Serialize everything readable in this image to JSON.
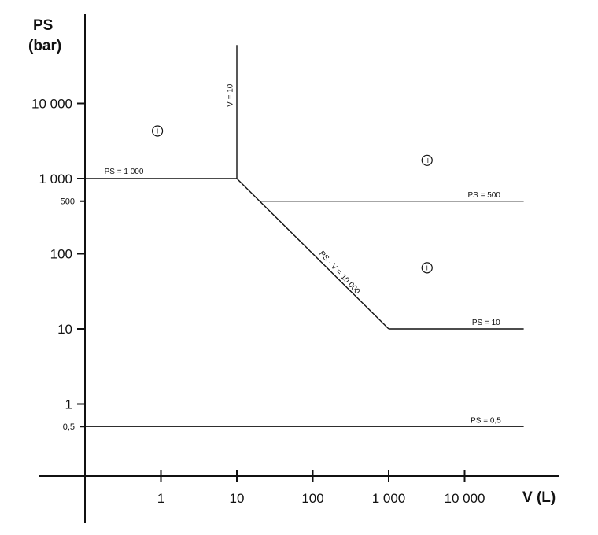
{
  "chart_data": {
    "type": "line",
    "title": "",
    "y_axis": {
      "label_line1": "PS",
      "label_line2": "(bar)",
      "scale": "log",
      "range": [
        0.05,
        60000
      ],
      "ticks": [
        {
          "value": 10000,
          "label": "10 000",
          "minor": false
        },
        {
          "value": 1000,
          "label": "1 000",
          "minor": false
        },
        {
          "value": 500,
          "label": "500",
          "minor": true
        },
        {
          "value": 100,
          "label": "100",
          "minor": false
        },
        {
          "value": 10,
          "label": "10",
          "minor": false
        },
        {
          "value": 1,
          "label": "1",
          "minor": false
        },
        {
          "value": 0.5,
          "label": "0,5",
          "minor": true
        }
      ]
    },
    "x_axis": {
      "label": "V (L)",
      "scale": "log",
      "range": [
        0.1,
        60000
      ],
      "ticks": [
        {
          "value": 1,
          "label": "1"
        },
        {
          "value": 10,
          "label": "10"
        },
        {
          "value": 100,
          "label": "100"
        },
        {
          "value": 1000,
          "label": "1 000"
        },
        {
          "value": 10000,
          "label": "10 000"
        }
      ]
    },
    "grid": false,
    "series": [
      {
        "name": "PS = 1 000",
        "points": [
          [
            0.1,
            1000
          ],
          [
            10,
            1000
          ]
        ]
      },
      {
        "name": "V = 10",
        "points": [
          [
            10,
            1000
          ],
          [
            10,
            60000
          ]
        ]
      },
      {
        "name": "PS · V = 10 000",
        "points": [
          [
            10,
            1000
          ],
          [
            1000,
            10
          ]
        ]
      },
      {
        "name": "PS = 500",
        "points": [
          [
            20,
            500
          ],
          [
            60000,
            500
          ]
        ]
      },
      {
        "name": "PS = 10",
        "points": [
          [
            1000,
            10
          ],
          [
            60000,
            10
          ]
        ]
      },
      {
        "name": "PS = 0,5",
        "points": [
          [
            0.1,
            0.5
          ],
          [
            60000,
            0.5
          ]
        ]
      }
    ],
    "annotations": [
      {
        "text": "PS = 1 000",
        "x": 0.18,
        "y": 1150,
        "rotate": 0
      },
      {
        "text": "V = 10",
        "x": 8.8,
        "y": 9000,
        "rotate": -90
      },
      {
        "text": "PS = 500",
        "x": 11000,
        "y": 560,
        "rotate": 0
      },
      {
        "text": "PS · V = 10 000",
        "x": 120,
        "y": 100,
        "rotate": 47
      },
      {
        "text": "PS = 10",
        "x": 12500,
        "y": 11.3,
        "rotate": 0
      },
      {
        "text": "PS = 0,5",
        "x": 12000,
        "y": 0.56,
        "rotate": 0
      }
    ],
    "category_markers": [
      {
        "label": "I",
        "x": 0.9,
        "y": 4300
      },
      {
        "label": "II",
        "x": 3200,
        "y": 1750
      },
      {
        "label": "I",
        "x": 3200,
        "y": 65
      }
    ]
  }
}
